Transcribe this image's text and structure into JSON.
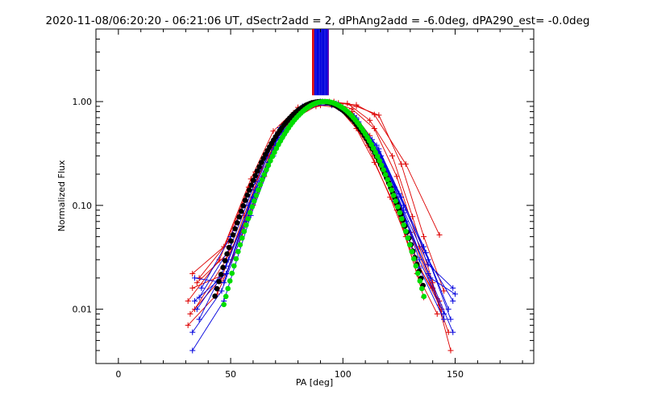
{
  "chart_data": {
    "type": "line",
    "title": "2020-11-08/06:20:20 - 06:21:06 UT, dSectr2add = 2, dPhAng2add = -6.0deg, dPA290_est= -0.0deg",
    "xlabel": "PA [deg]",
    "ylabel": "Normalized Flux",
    "xlim": [
      -10,
      185
    ],
    "ylim": [
      0.003,
      5.0
    ],
    "yscale": "log",
    "x_ticks": [
      0,
      50,
      100,
      150
    ],
    "x_tick_labels": [
      "0",
      "50",
      "100",
      "150"
    ],
    "y_ticks": [
      0.01,
      0.1,
      1.0
    ],
    "y_tick_labels": [
      "0.01",
      "0.10",
      "1.00"
    ],
    "colors": {
      "red": "#dd0000",
      "blue": "#0000dd",
      "black": "#000000",
      "green": "#00dd00",
      "purple": "#6600aa"
    },
    "vertical_markers": {
      "color_groups": [
        "red",
        "blue"
      ],
      "x": [
        86.5,
        87.0,
        87.5,
        88.0,
        88.5,
        89.0,
        89.5,
        90.0,
        90.5,
        91.0,
        91.5,
        92.0,
        92.5,
        93.0,
        93.5
      ],
      "y_from": 1.15,
      "y_to": 5.0
    },
    "series": [
      {
        "name": "red-1",
        "color": "red",
        "x": [
          33,
          48,
          60,
          71,
          82,
          90,
          98,
          106,
          114,
          124,
          133,
          142
        ],
        "y": [
          0.016,
          0.022,
          0.12,
          0.48,
          0.85,
          0.92,
          0.87,
          0.55,
          0.26,
          0.09,
          0.022,
          0.009
        ]
      },
      {
        "name": "red-2",
        "color": "red",
        "x": [
          31,
          45,
          58,
          68,
          78,
          87,
          95,
          103,
          111,
          121,
          132,
          143
        ],
        "y": [
          0.012,
          0.03,
          0.15,
          0.4,
          0.78,
          0.96,
          0.95,
          0.7,
          0.38,
          0.12,
          0.03,
          0.012
        ]
      },
      {
        "name": "red-3",
        "color": "red",
        "x": [
          36,
          49,
          61,
          73,
          84,
          92,
          100,
          110,
          120,
          130,
          140,
          147
        ],
        "y": [
          0.02,
          0.045,
          0.21,
          0.6,
          0.93,
          1.0,
          0.9,
          0.5,
          0.2,
          0.055,
          0.016,
          0.006
        ]
      },
      {
        "name": "red-4",
        "color": "red",
        "x": [
          32,
          46,
          56,
          66,
          75,
          86,
          96,
          106,
          116,
          126,
          136,
          145
        ],
        "y": [
          0.009,
          0.02,
          0.08,
          0.3,
          0.62,
          0.97,
          1.0,
          0.9,
          0.74,
          0.25,
          0.05,
          0.015
        ]
      },
      {
        "name": "red-5",
        "color": "red",
        "x": [
          33,
          47,
          59,
          69,
          80,
          90,
          98,
          106,
          114,
          124,
          134,
          144
        ],
        "y": [
          0.022,
          0.04,
          0.18,
          0.52,
          0.88,
          1.0,
          0.97,
          0.62,
          0.3,
          0.1,
          0.026,
          0.01
        ]
      },
      {
        "name": "red-6",
        "color": "red",
        "x": [
          31,
          44,
          55,
          65,
          74,
          84,
          94,
          104,
          114,
          124,
          134,
          143
        ],
        "y": [
          0.007,
          0.014,
          0.05,
          0.19,
          0.5,
          0.92,
          1.0,
          0.85,
          0.55,
          0.19,
          0.04,
          0.011
        ]
      },
      {
        "name": "red-7",
        "color": "red",
        "x": [
          35,
          49,
          60,
          71,
          82,
          92,
          102,
          112,
          122,
          131,
          140,
          148
        ],
        "y": [
          0.018,
          0.035,
          0.15,
          0.45,
          0.85,
          1.0,
          0.96,
          0.66,
          0.3,
          0.078,
          0.018,
          0.004
        ]
      },
      {
        "name": "red-8",
        "color": "red",
        "x": [
          34,
          48,
          60,
          70,
          80,
          88,
          96,
          104,
          112,
          120,
          128,
          136
        ],
        "y": [
          0.01,
          0.03,
          0.1,
          0.35,
          0.72,
          0.9,
          0.95,
          0.8,
          0.47,
          0.18,
          0.05,
          0.013
        ]
      },
      {
        "name": "red-outlier",
        "color": "red",
        "x": [
          84,
          96,
          106,
          114,
          128,
          143
        ],
        "y": [
          0.85,
          0.97,
          0.93,
          0.75,
          0.25,
          0.052
        ]
      },
      {
        "name": "blue-1",
        "color": "blue",
        "x": [
          34,
          47,
          58,
          68,
          78,
          87,
          95,
          104,
          113,
          123,
          134,
          145
        ],
        "y": [
          0.02,
          0.018,
          0.1,
          0.36,
          0.75,
          0.93,
          0.92,
          0.68,
          0.36,
          0.11,
          0.025,
          0.008
        ]
      },
      {
        "name": "blue-2",
        "color": "blue",
        "x": [
          36,
          50,
          61,
          71,
          81,
          90,
          98,
          107,
          117,
          127,
          138,
          149
        ],
        "y": [
          0.013,
          0.04,
          0.17,
          0.5,
          0.86,
          1.0,
          0.93,
          0.62,
          0.28,
          0.085,
          0.022,
          0.006
        ]
      },
      {
        "name": "blue-3",
        "color": "blue",
        "x": [
          33,
          46,
          57,
          67,
          77,
          86,
          94,
          103,
          113,
          123,
          134,
          145
        ],
        "y": [
          0.006,
          0.015,
          0.07,
          0.26,
          0.62,
          0.91,
          0.97,
          0.77,
          0.43,
          0.15,
          0.03,
          0.009
        ]
      },
      {
        "name": "blue-4",
        "color": "blue",
        "x": [
          35,
          48,
          60,
          70,
          80,
          89,
          97,
          106,
          116,
          127,
          138,
          149
        ],
        "y": [
          0.01,
          0.026,
          0.12,
          0.4,
          0.8,
          0.98,
          0.96,
          0.68,
          0.33,
          0.1,
          0.03,
          0.012
        ]
      },
      {
        "name": "blue-5",
        "color": "blue",
        "x": [
          37,
          50,
          62,
          72,
          82,
          91,
          99,
          108,
          118,
          128,
          139,
          150
        ],
        "y": [
          0.016,
          0.05,
          0.22,
          0.56,
          0.9,
          1.0,
          0.9,
          0.56,
          0.24,
          0.07,
          0.02,
          0.014
        ]
      },
      {
        "name": "blue-6",
        "color": "blue",
        "x": [
          33,
          47,
          59,
          69,
          79,
          88,
          96,
          105,
          115,
          125,
          136,
          147
        ],
        "y": [
          0.004,
          0.012,
          0.08,
          0.3,
          0.68,
          0.95,
          0.96,
          0.73,
          0.38,
          0.13,
          0.04,
          0.01
        ]
      },
      {
        "name": "blue-7",
        "color": "blue",
        "x": [
          36,
          49,
          61,
          71,
          81,
          90,
          98,
          107,
          117,
          127,
          138,
          149
        ],
        "y": [
          0.008,
          0.03,
          0.14,
          0.45,
          0.83,
          0.99,
          0.94,
          0.64,
          0.3,
          0.09,
          0.027,
          0.016
        ]
      },
      {
        "name": "blue-8",
        "color": "blue",
        "x": [
          34,
          48,
          60,
          70,
          80,
          89,
          97,
          106,
          116,
          126,
          137,
          148
        ],
        "y": [
          0.012,
          0.022,
          0.11,
          0.38,
          0.78,
          0.97,
          0.95,
          0.7,
          0.35,
          0.12,
          0.035,
          0.008
        ]
      }
    ],
    "model_curves": [
      {
        "name": "black-model",
        "color": "black",
        "center": 90.0,
        "sigma": 16.0,
        "x_from": 43,
        "x_to": 136
      },
      {
        "name": "green-model",
        "color": "green",
        "center": 92.0,
        "sigma": 15.0,
        "x_from": 47,
        "x_to": 137
      }
    ]
  }
}
